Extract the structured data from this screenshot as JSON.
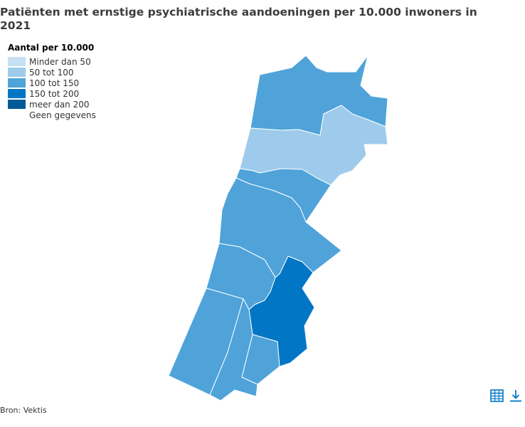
{
  "title": "Patiënten met ernstige psychiatrische aandoeningen per 10.000 inwoners in 2021",
  "legend": {
    "title": "Aantal per 10.000",
    "items": [
      {
        "label": "Minder dan 50",
        "color": "#c6e0f3"
      },
      {
        "label": "50 tot 100",
        "color": "#9ecbeb"
      },
      {
        "label": "100 tot 150",
        "color": "#4fa3d9"
      },
      {
        "label": "150 tot 200",
        "color": "#0076c5"
      },
      {
        "label": "meer dan 200",
        "color": "#005a96"
      },
      {
        "label": "Geen gegevens",
        "color": "#ffffff"
      }
    ]
  },
  "regions": [
    {
      "name": "north-region",
      "class": "100 tot 150",
      "color": "#4fa3d9"
    },
    {
      "name": "north-center-region",
      "class": "50 tot 100",
      "color": "#9ecbeb"
    },
    {
      "name": "center-band-region",
      "class": "100 tot 150",
      "color": "#4fa3d9"
    },
    {
      "name": "center-region",
      "class": "100 tot 150",
      "color": "#4fa3d9"
    },
    {
      "name": "southeast-region",
      "class": "150 tot 200",
      "color": "#0076c5"
    },
    {
      "name": "west-region",
      "class": "100 tot 150",
      "color": "#4fa3d9"
    },
    {
      "name": "southwest-region",
      "class": "100 tot 150",
      "color": "#4fa3d9"
    },
    {
      "name": "south-region",
      "class": "100 tot 150",
      "color": "#4fa3d9"
    },
    {
      "name": "south-small-region",
      "class": "100 tot 150",
      "color": "#4fa3d9"
    }
  ],
  "source": "Bron: Vektis",
  "icons": {
    "table": "table-icon",
    "download": "download-icon"
  },
  "accent_color": "#0076c5"
}
